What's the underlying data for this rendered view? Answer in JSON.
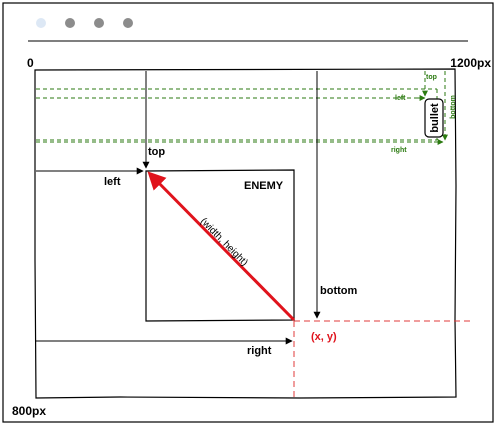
{
  "window": {
    "dots": [
      "light-dot",
      "gray-dot",
      "gray-dot",
      "gray-dot"
    ]
  },
  "colors": {
    "black": "#000000",
    "green": "#2b7a10",
    "red": "#e0131c",
    "red_dashed": "#e23b3b",
    "dot_light": "#dde8f5",
    "dot_gray": "#8c8c8c",
    "separator": "#7f7f7f"
  },
  "labels": {
    "origin": "0",
    "width_px": "1200px",
    "height_px": "800px",
    "enemy": "ENEMY",
    "top": "top",
    "left": "left",
    "bottom": "bottom",
    "right": "right",
    "diagonal": "(width, height)",
    "xy": "(x, y)",
    "bullet": "bullet",
    "bullet_top": "top",
    "bullet_left": "left",
    "bullet_bottom": "bottom",
    "bullet_right": "right"
  }
}
